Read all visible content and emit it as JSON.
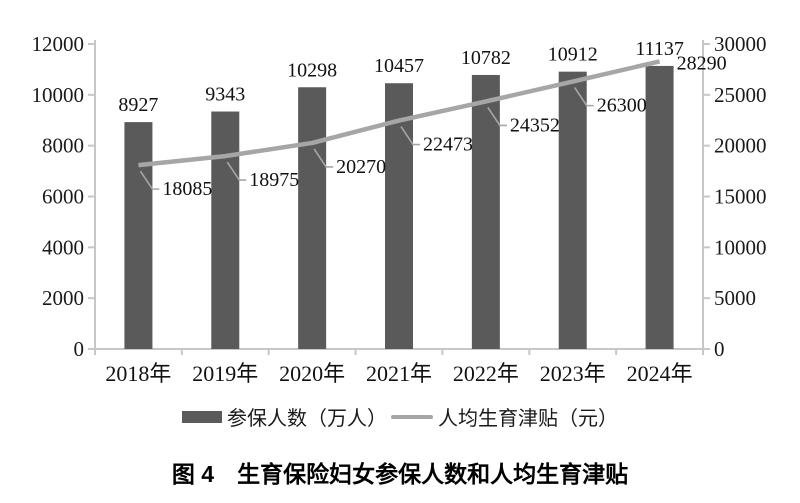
{
  "figure": {
    "caption": "图 4　生育保险妇女参保人数和人均生育津贴"
  },
  "legend": [
    {
      "kind": "bar",
      "label": "参保人数（万人）",
      "color": "#5a5a5a"
    },
    {
      "kind": "line",
      "label": "人均生育津贴（元）",
      "color": "#a6a6a6"
    }
  ],
  "chart_data": {
    "type": "bar+line combo",
    "categories": [
      "2018年",
      "2019年",
      "2020年",
      "2021年",
      "2022年",
      "2023年",
      "2024年"
    ],
    "series": [
      {
        "name": "参保人数（万人）",
        "type": "bar",
        "axis": "left",
        "color": "#5a5a5a",
        "values": [
          8927,
          9343,
          10298,
          10457,
          10782,
          10912,
          11137
        ]
      },
      {
        "name": "人均生育津贴（元）",
        "type": "line",
        "axis": "right",
        "color": "#a6a6a6",
        "values": [
          18085,
          18975,
          20270,
          22473,
          24352,
          26300,
          28290
        ]
      }
    ],
    "left_axis": {
      "min": 0,
      "max": 12000,
      "ticks": [
        0,
        2000,
        4000,
        6000,
        8000,
        10000,
        12000
      ]
    },
    "right_axis": {
      "min": 0,
      "max": 30000,
      "ticks": [
        0,
        5000,
        10000,
        15000,
        20000,
        25000,
        30000
      ]
    },
    "grid": false,
    "data_labels": true,
    "legend_position": "bottom",
    "title": "图 4　生育保险妇女参保人数和人均生育津贴",
    "axis_color": "#c7c7c7",
    "label_color": "#111111",
    "background": "#ffffff"
  }
}
